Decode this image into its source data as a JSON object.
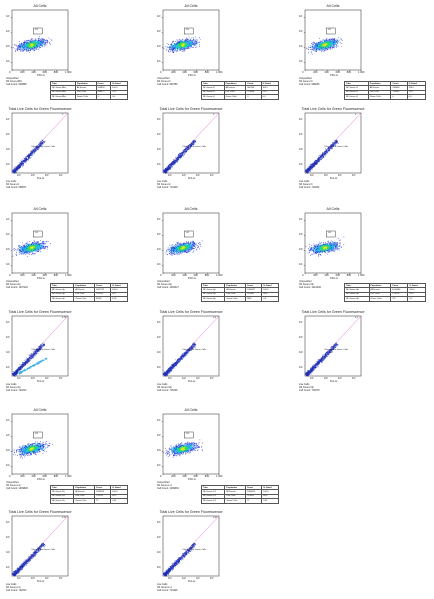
{
  "panels": [
    {
      "id": "p1",
      "type": "density",
      "title": "All Cells",
      "gate_label": "R1",
      "x_ticks": [
        "0",
        "200",
        "400",
        "600",
        "800",
        "1 000"
      ],
      "y_ticks": [
        "10¹",
        "10²",
        "10³",
        "10⁴"
      ],
      "x_axis_label": "FSC-A",
      "info": [
        "Unspecified",
        "NF Green-48m",
        "Cell Count: 949858"
      ]
    },
    {
      "id": "p2",
      "type": "density",
      "title": "All Cells",
      "gate_label": "R1",
      "x_ticks": [
        "0",
        "200",
        "400",
        "600",
        "800",
        "1 000"
      ],
      "y_ticks": [
        "10¹",
        "10²",
        "10³",
        "10⁴"
      ],
      "x_axis_label": "FSC-A",
      "info": [
        "Unspecified",
        "NF Green-r2",
        "Cell Count: 960786"
      ]
    },
    {
      "id": "p3",
      "type": "density",
      "title": "All Cells",
      "gate_label": "R1",
      "x_ticks": [
        "0",
        "200",
        "400",
        "600",
        "800",
        "1 000"
      ],
      "y_ticks": [
        "10¹",
        "10²",
        "10³",
        "10⁴"
      ],
      "x_axis_label": "FSC-A",
      "info": [
        "Unspecified",
        "NF Green-r3",
        "Cell Count: 938066"
      ]
    },
    {
      "id": "p4",
      "type": "scatter",
      "title": "Total Live Cells for Green Fluorescence",
      "gate_label": "Fluorescent Green Cells",
      "corner_label": "0",
      "x_axis_label": "FL1-H",
      "info": [
        "Live Cells",
        "NF Green-r1",
        "Cell Count: 698571"
      ]
    },
    {
      "id": "p5",
      "type": "scatter",
      "title": "Total Live Cells for Green Fluorescence",
      "gate_label": "Fluorescent Green Cells",
      "corner_label": "0",
      "x_axis_label": "FL1-H",
      "info": [
        "Live Cells",
        "NF Green-r2",
        "Cell Count: 713448"
      ]
    },
    {
      "id": "p6",
      "type": "scatter",
      "title": "Total Live Cells for Green Fluorescence",
      "gate_label": "Fluorescent Green Cells",
      "corner_label": "0",
      "x_axis_label": "FL1-H",
      "info": [
        "Live Cells",
        "NF Green-r3",
        "Cell Count: 711832"
      ]
    },
    {
      "id": "p7",
      "type": "density",
      "title": "All Cells",
      "gate_label": "R1",
      "x_ticks": [
        "0",
        "200",
        "400",
        "600",
        "800",
        "1 000"
      ],
      "y_ticks": [
        "10¹",
        "10²",
        "10³",
        "10⁴"
      ],
      "x_axis_label": "FSC-A",
      "info": [
        "Unspecified",
        "NF Green-r1p",
        "Cell Count: 1037122"
      ]
    },
    {
      "id": "p8",
      "type": "density",
      "title": "All Cells",
      "gate_label": "R1",
      "x_ticks": [
        "0",
        "200",
        "400",
        "600",
        "800",
        "1 000"
      ],
      "y_ticks": [
        "10¹",
        "10²",
        "10³",
        "10⁴"
      ],
      "x_axis_label": "FSC-A",
      "info": [
        "Unspecified",
        "NF Green-r2p",
        "Cell Count: 1043427"
      ]
    },
    {
      "id": "p9",
      "type": "density",
      "title": "All Cells",
      "gate_label": "R1",
      "x_ticks": [
        "0",
        "200",
        "400",
        "600",
        "800",
        "1 000"
      ],
      "y_ticks": [
        "10¹",
        "10²",
        "10³",
        "10⁴"
      ],
      "x_axis_label": "FSC-A",
      "info": [
        "Unspecified",
        "NF Green-r3p",
        "Cell Count: 1014446"
      ]
    },
    {
      "id": "p10",
      "type": "scatter",
      "title": "Total Live Cells for Green Fluorescence",
      "gate_label": "Fluorescent Green Cells",
      "corner_label": "6.78",
      "x_axis_label": "FL1-H",
      "info": [
        "Live Cells",
        "NF Green-r1p",
        "Cell Count: 723013"
      ]
    },
    {
      "id": "p11",
      "type": "scatter",
      "title": "Total Live Cells for Green Fluorescence",
      "gate_label": "Fluorescent Green Cells",
      "corner_label": "0.4",
      "x_axis_label": "FL1-H",
      "info": [
        "Live Cells",
        "NF Green-r2p",
        "Cell Count: 715446"
      ]
    },
    {
      "id": "p12",
      "type": "scatter",
      "title": "Total Live Cells for Green Fluorescence",
      "gate_label": "Fluorescent Green Cells",
      "corner_label": "0.1",
      "x_axis_label": "FL1-H",
      "info": [
        "Live Cells",
        "NF Green-r3p",
        "Cell Count: 715078"
      ]
    },
    {
      "id": "p13",
      "type": "density",
      "title": "All Cells",
      "gate_label": "R1",
      "x_ticks": [
        "0",
        "200",
        "400",
        "600",
        "800",
        "1 000"
      ],
      "y_ticks": [
        "10¹",
        "10²",
        "10³",
        "10⁴"
      ],
      "x_axis_label": "FSC-A",
      "info": [
        "Unspecified",
        "NF Green-1-b",
        "Cell Count: 1039826"
      ]
    },
    {
      "id": "p14",
      "type": "density",
      "title": "All Cells",
      "gate_label": "R1",
      "x_ticks": [
        "0",
        "200",
        "400",
        "600",
        "800",
        "1 000"
      ],
      "y_ticks": [
        "10¹",
        "10²",
        "10³",
        "10⁴"
      ],
      "x_axis_label": "FSC-A",
      "info": [
        "Unspecified",
        "NF Green-1-4",
        "Cell Count: 1049662"
      ]
    },
    {
      "id": "p15",
      "type": "scatter",
      "title": "Total Live Cells for Green Fluorescence",
      "gate_label": "Fluorescent Green Cells",
      "corner_label": "0.01",
      "x_axis_label": "FL1-H",
      "info": [
        "Live Cells",
        "NF Green-1-b",
        "Cell Count: 722613"
      ]
    },
    {
      "id": "p16",
      "type": "scatter",
      "title": "Total Live Cells for Green Fluorescence",
      "gate_label": "Fluorescent Green Cells",
      "corner_label": "0.01",
      "x_axis_label": "FL1-H",
      "info": [
        "Live Cells",
        "NF Green-1-4",
        "Cell Count: 713426"
      ]
    }
  ],
  "stat_tables": [
    {
      "id": "t1",
      "header": [
        "Tube",
        "Population",
        "Count",
        "% Gated"
      ],
      "rows": [
        [
          "NF Green-48m",
          "All Events",
          "949858",
          "100.0"
        ],
        [
          "NF Green-48m",
          "Live Cells",
          "698571",
          "73.5"
        ],
        [
          "NF Green-48m",
          "Green Cells",
          "0",
          "0.0"
        ]
      ]
    },
    {
      "id": "t2",
      "header": [
        "Tube",
        "Population",
        "Count",
        "% Gated"
      ],
      "rows": [
        [
          "NF Green-r2",
          "All Events",
          "960786",
          "100.0"
        ],
        [
          "NF Green-r2",
          "Live Cells",
          "713448",
          "74.3"
        ],
        [
          "NF Green-r2",
          "Green Cells",
          "0",
          "0.0"
        ]
      ]
    },
    {
      "id": "t3",
      "header": [
        "Tube",
        "Population",
        "Count",
        "% Gated"
      ],
      "rows": [
        [
          "NF Green-r3",
          "All Events",
          "938066",
          "100.0"
        ],
        [
          "NF Green-r3",
          "Live Cells",
          "711832",
          "75.9"
        ],
        [
          "NF Green-r3",
          "Green Cells",
          "0",
          "0.0"
        ]
      ]
    },
    {
      "id": "t4",
      "header": [
        "Tube",
        "Population",
        "Count",
        "% Gated"
      ],
      "rows": [
        [
          "NF Green-r1p",
          "All Events",
          "1037122",
          "100.0"
        ],
        [
          "NF Green-r1p",
          "Live Cells",
          "723013",
          "69.7"
        ],
        [
          "NF Green-r1p",
          "Green Cells",
          "49016",
          "6.78"
        ]
      ]
    },
    {
      "id": "t5",
      "header": [
        "Tube",
        "Population",
        "Count",
        "% Gated"
      ],
      "rows": [
        [
          "NF Green-r2p",
          "All Events",
          "1043427",
          "100.0"
        ],
        [
          "NF Green-r2p",
          "Live Cells",
          "715446",
          "68.6"
        ],
        [
          "NF Green-r2p",
          "Green Cells",
          "2862",
          "0.4"
        ]
      ]
    },
    {
      "id": "t6",
      "header": [
        "Tube",
        "Population",
        "Count",
        "% Gated"
      ],
      "rows": [
        [
          "NF Green-r3p",
          "All Events",
          "1014446",
          "100.0"
        ],
        [
          "NF Green-r3p",
          "Live Cells",
          "715078",
          "70.5"
        ],
        [
          "NF Green-r3p",
          "Green Cells",
          "715",
          "0.1"
        ]
      ]
    },
    {
      "id": "t7",
      "header": [
        "Tube",
        "Population",
        "Count",
        "% Gated"
      ],
      "rows": [
        [
          "NF Green-1-b",
          "All Events",
          "1039826",
          "100.0"
        ],
        [
          "NF Green-1-b",
          "Live Cells",
          "722613",
          "69.5"
        ],
        [
          "NF Green-1-b",
          "Green Cells",
          "72",
          "0.01"
        ]
      ]
    },
    {
      "id": "t8",
      "header": [
        "Tube",
        "Population",
        "Count",
        "% Gated"
      ],
      "rows": [
        [
          "NF Green-1-4",
          "All Events",
          "1049662",
          "100.0"
        ],
        [
          "NF Green-1-4",
          "Live Cells",
          "713426",
          "68.0"
        ],
        [
          "NF Green-1-4",
          "Green Cells",
          "71",
          "0.01"
        ]
      ]
    }
  ],
  "colors": {
    "density_low": "#1a2bd8",
    "density_mid": "#23c8e6",
    "density_high": "#2ee34a",
    "density_peak": "#f2e51a",
    "diagonal": "#d94bd0",
    "scatter": "#1f2fb4",
    "frame": "#222222"
  }
}
